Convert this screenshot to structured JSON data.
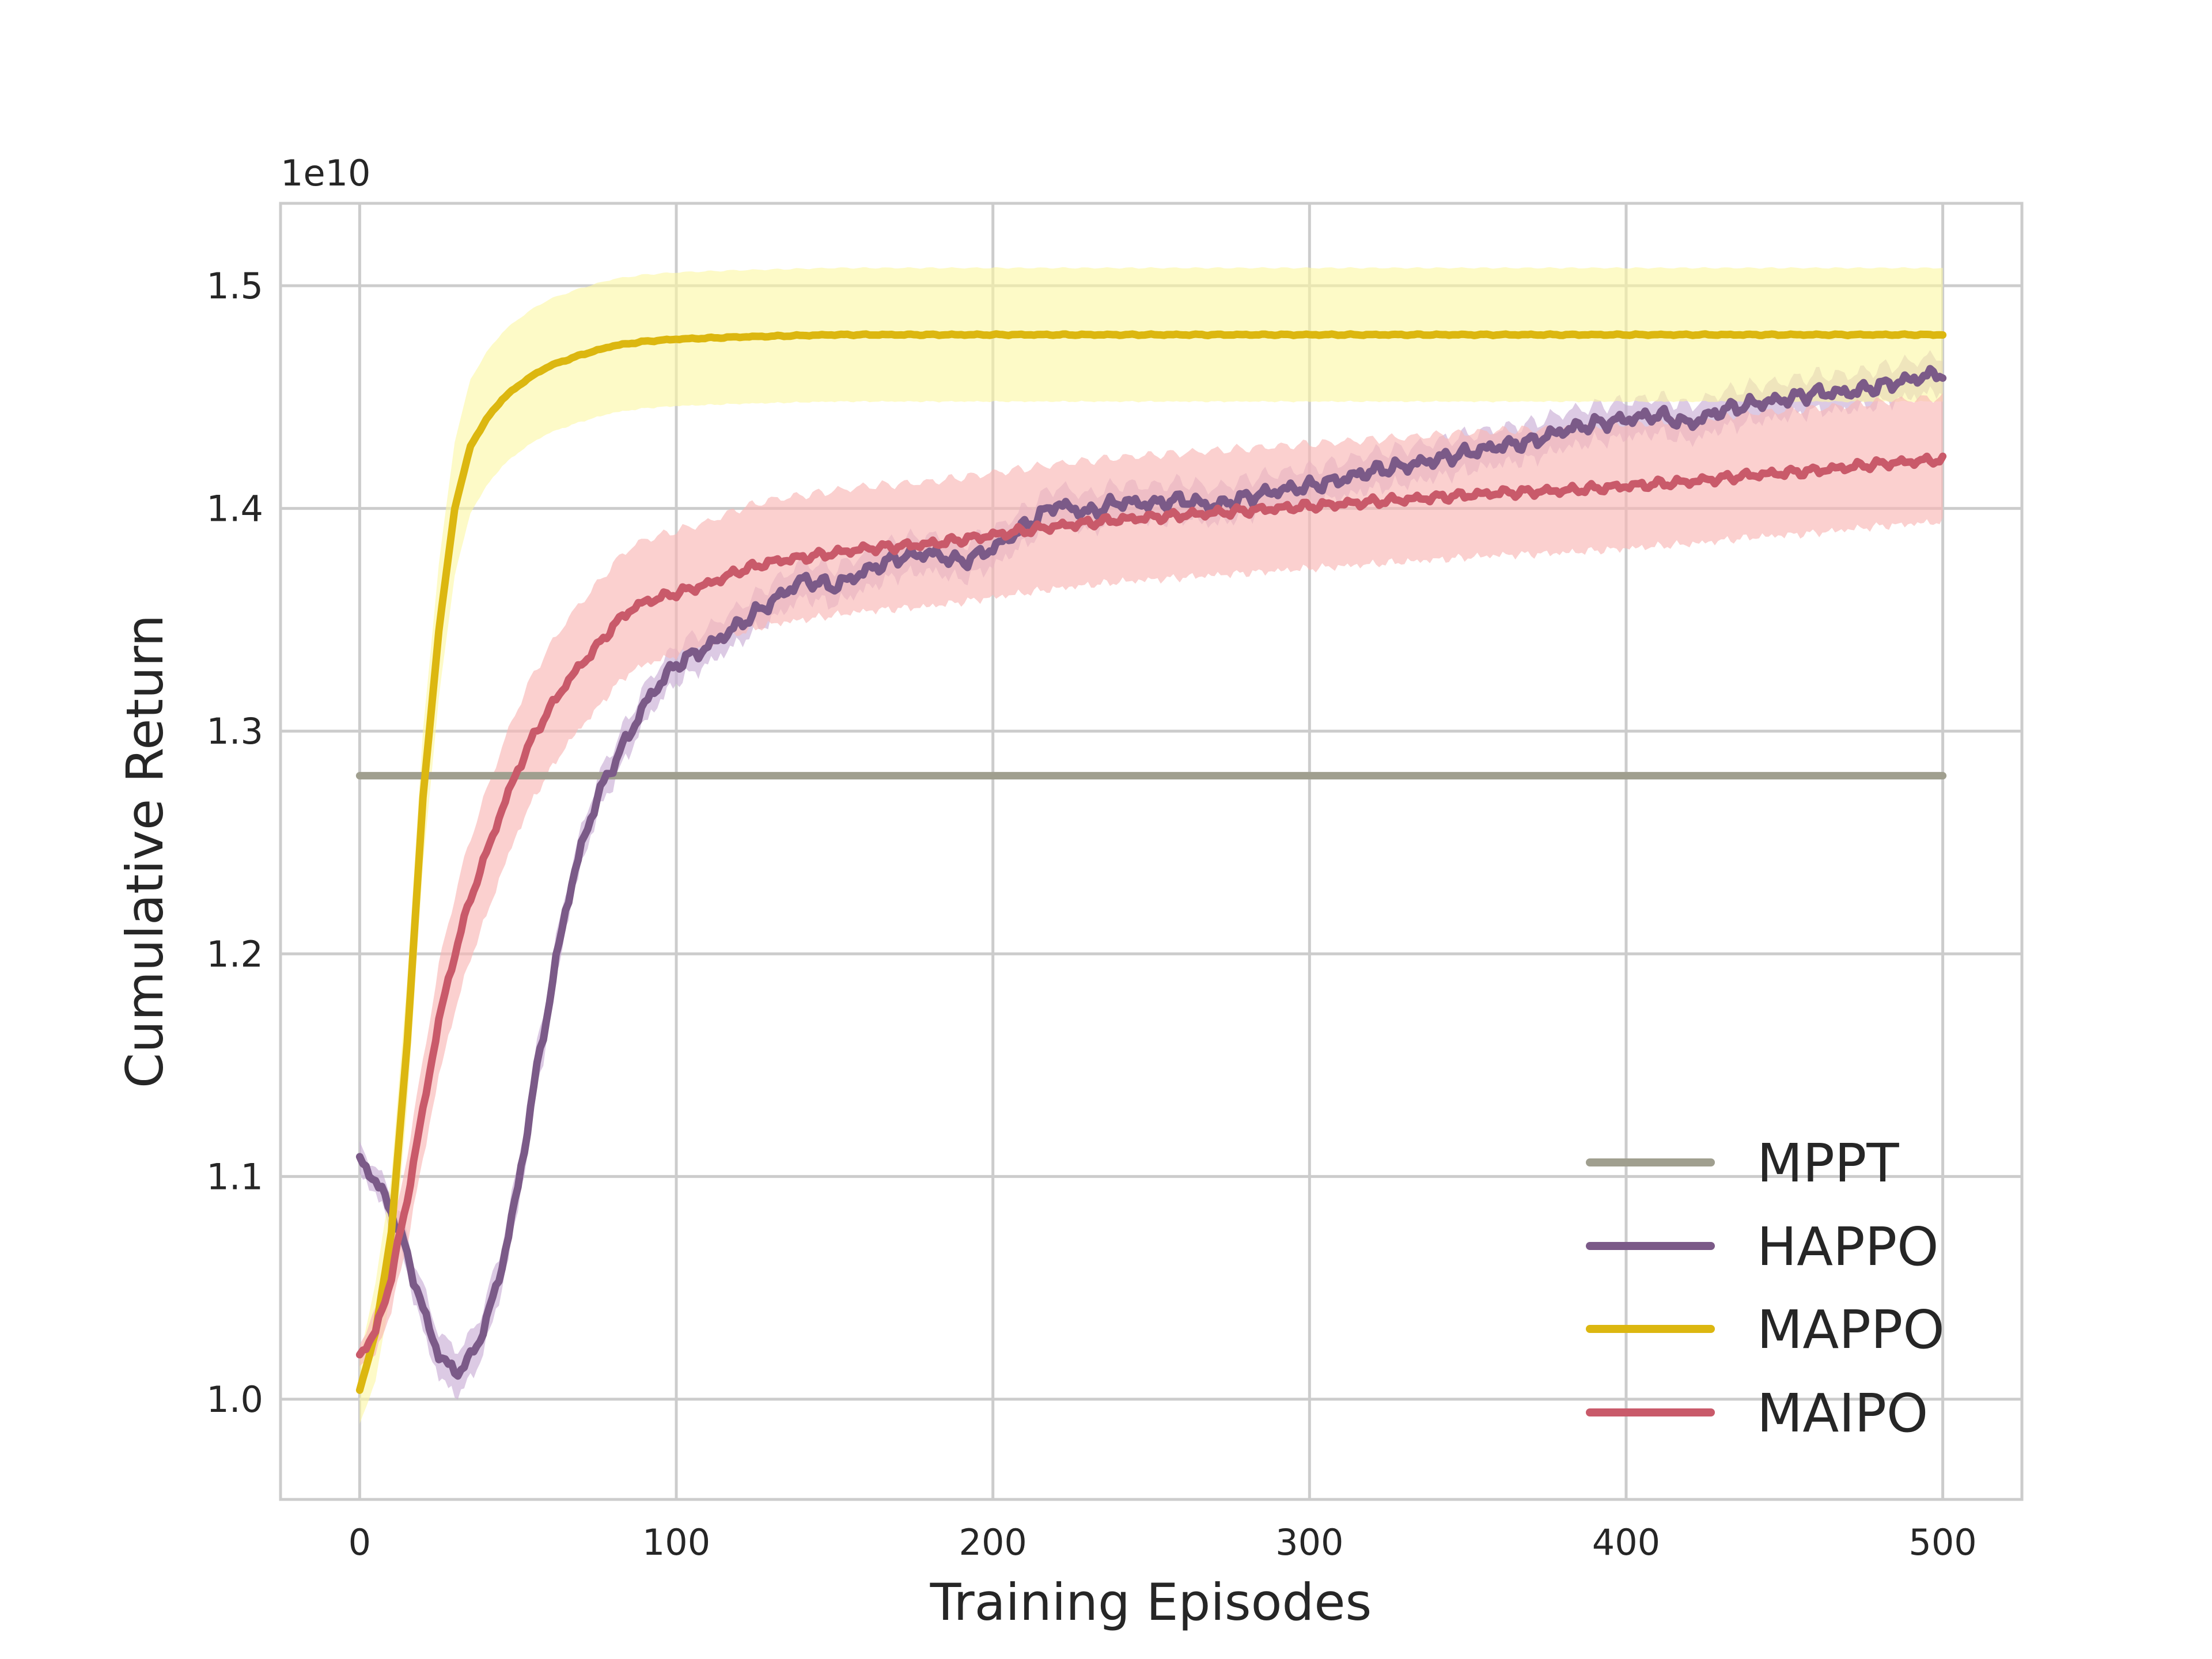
{
  "chart_data": {
    "type": "line",
    "xlabel": "Training Episodes",
    "ylabel": "Cumulative Return",
    "y_offset_text": "1e10",
    "xlim": [
      -25,
      525
    ],
    "ylim": [
      0.955,
      1.537
    ],
    "x_ticks": [
      0,
      100,
      200,
      300,
      400,
      500
    ],
    "y_ticks": [
      1.0,
      1.1,
      1.2,
      1.3,
      1.4,
      1.5
    ],
    "x_tick_labels": [
      "0",
      "100",
      "200",
      "300",
      "400",
      "500"
    ],
    "y_tick_labels": [
      "1.0",
      "1.1",
      "1.2",
      "1.3",
      "1.4",
      "1.5"
    ],
    "grid": true,
    "legend_position": "lower-right",
    "series": [
      {
        "name": "MPPT",
        "color": "#a09f8f",
        "x": [
          0,
          100,
          200,
          300,
          400,
          500
        ],
        "y": [
          1.28,
          1.28,
          1.28,
          1.28,
          1.28,
          1.28
        ]
      },
      {
        "name": "HAPPO",
        "color": "#7b5a88",
        "band_color": "#c9aed6",
        "x": [
          0,
          5,
          10,
          15,
          20,
          25,
          30,
          35,
          40,
          45,
          50,
          55,
          60,
          65,
          70,
          75,
          80,
          85,
          90,
          95,
          100,
          110,
          120,
          130,
          140,
          150,
          160,
          170,
          180,
          190,
          200,
          210,
          220,
          230,
          240,
          250,
          260,
          270,
          280,
          290,
          300,
          310,
          320,
          330,
          340,
          350,
          360,
          370,
          380,
          390,
          400,
          410,
          420,
          430,
          440,
          450,
          460,
          470,
          480,
          490,
          500
        ],
        "y": [
          1.108,
          1.098,
          1.085,
          1.065,
          1.04,
          1.02,
          1.012,
          1.018,
          1.035,
          1.06,
          1.095,
          1.14,
          1.18,
          1.22,
          1.248,
          1.27,
          1.285,
          1.298,
          1.312,
          1.322,
          1.33,
          1.338,
          1.348,
          1.358,
          1.368,
          1.365,
          1.372,
          1.378,
          1.38,
          1.376,
          1.382,
          1.392,
          1.402,
          1.398,
          1.403,
          1.402,
          1.404,
          1.401,
          1.405,
          1.408,
          1.41,
          1.413,
          1.417,
          1.419,
          1.422,
          1.425,
          1.428,
          1.43,
          1.435,
          1.438,
          1.44,
          1.442,
          1.438,
          1.444,
          1.447,
          1.449,
          1.452,
          1.452,
          1.455,
          1.458,
          1.461
        ],
        "band": [
          0.006,
          0.006,
          0.008,
          0.008,
          0.01,
          0.01,
          0.01,
          0.01,
          0.01,
          0.01,
          0.01,
          0.01,
          0.01,
          0.008,
          0.008,
          0.008,
          0.008,
          0.008,
          0.008,
          0.008,
          0.008,
          0.008,
          0.008,
          0.008,
          0.008,
          0.008,
          0.008,
          0.008,
          0.008,
          0.008,
          0.008,
          0.008,
          0.008,
          0.008,
          0.008,
          0.008,
          0.008,
          0.008,
          0.008,
          0.008,
          0.008,
          0.008,
          0.008,
          0.008,
          0.008,
          0.008,
          0.008,
          0.008,
          0.008,
          0.008,
          0.008,
          0.008,
          0.008,
          0.008,
          0.008,
          0.008,
          0.008,
          0.008,
          0.008,
          0.008,
          0.008
        ]
      },
      {
        "name": "MAPPO",
        "color": "#dcb710",
        "band_color": "#fcf7a2",
        "x": [
          0,
          5,
          10,
          15,
          20,
          25,
          30,
          35,
          40,
          45,
          50,
          55,
          60,
          70,
          80,
          90,
          100,
          120,
          150,
          200,
          250,
          300,
          350,
          400,
          450,
          500
        ],
        "y": [
          1.004,
          1.03,
          1.075,
          1.16,
          1.27,
          1.345,
          1.4,
          1.428,
          1.44,
          1.449,
          1.455,
          1.46,
          1.464,
          1.469,
          1.473,
          1.475,
          1.476,
          1.477,
          1.478,
          1.478,
          1.478,
          1.478,
          1.478,
          1.478,
          1.478,
          1.478
        ],
        "band": [
          0.015,
          0.022,
          0.025,
          0.028,
          0.03,
          0.03,
          0.03,
          0.03,
          0.03,
          0.03,
          0.03,
          0.03,
          0.03,
          0.03,
          0.03,
          0.03,
          0.03,
          0.03,
          0.03,
          0.03,
          0.03,
          0.03,
          0.03,
          0.03,
          0.03,
          0.03
        ]
      },
      {
        "name": "MAIPO",
        "color": "#c95a6a",
        "band_color": "#f9b7b6",
        "x": [
          0,
          5,
          10,
          15,
          20,
          25,
          30,
          35,
          40,
          45,
          50,
          55,
          60,
          65,
          70,
          75,
          80,
          85,
          90,
          95,
          100,
          110,
          120,
          130,
          140,
          150,
          160,
          170,
          180,
          190,
          200,
          220,
          240,
          260,
          280,
          300,
          320,
          340,
          360,
          380,
          400,
          420,
          440,
          460,
          480,
          500
        ],
        "y": [
          1.02,
          1.03,
          1.055,
          1.09,
          1.13,
          1.17,
          1.2,
          1.225,
          1.245,
          1.265,
          1.283,
          1.298,
          1.31,
          1.321,
          1.33,
          1.338,
          1.347,
          1.354,
          1.358,
          1.36,
          1.362,
          1.366,
          1.372,
          1.376,
          1.378,
          1.38,
          1.382,
          1.383,
          1.384,
          1.386,
          1.388,
          1.392,
          1.395,
          1.397,
          1.399,
          1.401,
          1.403,
          1.405,
          1.407,
          1.408,
          1.41,
          1.412,
          1.415,
          1.417,
          1.42,
          1.422
        ],
        "band": [
          0.005,
          0.01,
          0.015,
          0.02,
          0.022,
          0.025,
          0.026,
          0.027,
          0.028,
          0.028,
          0.028,
          0.028,
          0.028,
          0.028,
          0.028,
          0.028,
          0.028,
          0.028,
          0.028,
          0.028,
          0.028,
          0.028,
          0.028,
          0.028,
          0.028,
          0.028,
          0.028,
          0.028,
          0.028,
          0.028,
          0.028,
          0.028,
          0.028,
          0.028,
          0.028,
          0.028,
          0.028,
          0.028,
          0.028,
          0.028,
          0.028,
          0.028,
          0.028,
          0.028,
          0.028,
          0.028
        ]
      }
    ]
  }
}
